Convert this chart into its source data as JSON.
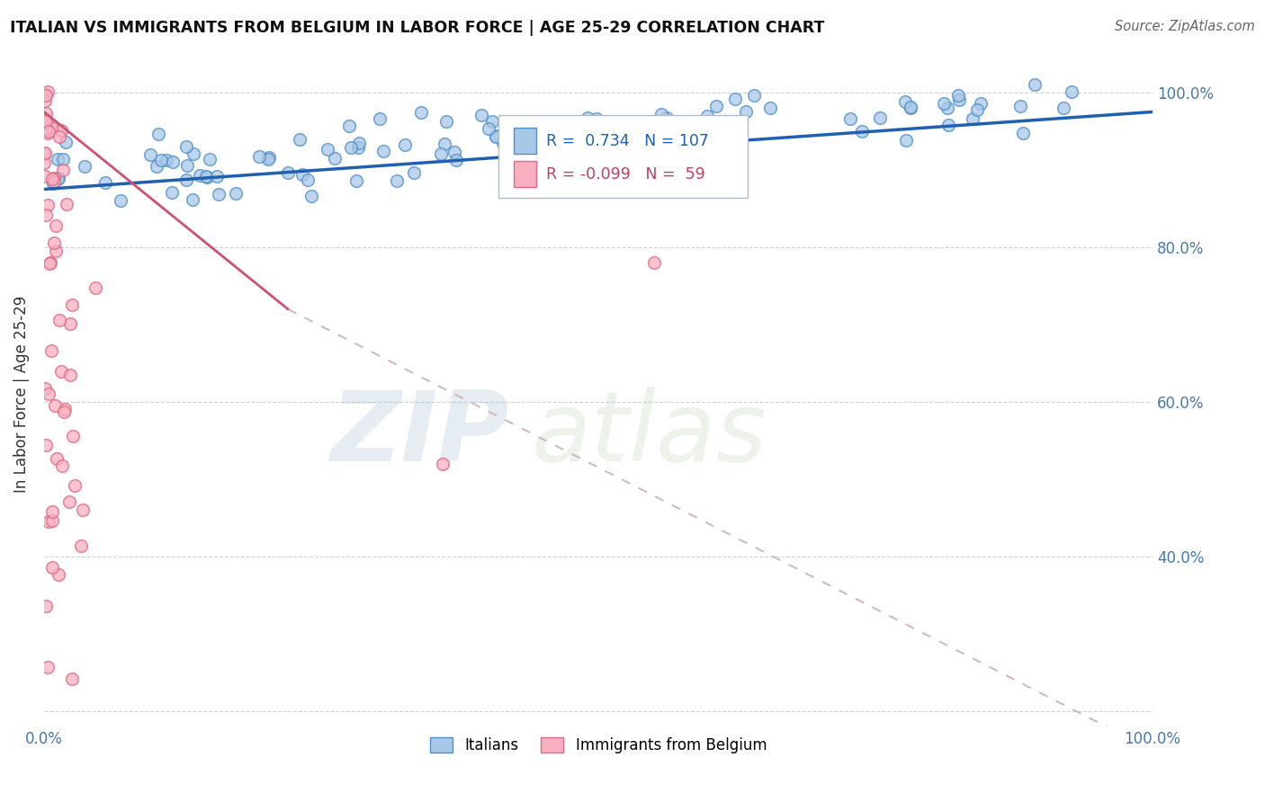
{
  "title": "ITALIAN VS IMMIGRANTS FROM BELGIUM IN LABOR FORCE | AGE 25-29 CORRELATION CHART",
  "source_text": "Source: ZipAtlas.com",
  "ylabel": "In Labor Force | Age 25-29",
  "watermark_zip": "ZIP",
  "watermark_atlas": "atlas",
  "blue_label": "Italians",
  "pink_label": "Immigrants from Belgium",
  "blue_R": 0.734,
  "blue_N": 107,
  "pink_R": -0.099,
  "pink_N": 59,
  "blue_color": "#a8c8e8",
  "blue_edge_color": "#5090c8",
  "pink_color": "#f8b0c0",
  "pink_edge_color": "#e06888",
  "trend_blue_color": "#2060b0",
  "trend_pink_color": "#d05070",
  "trend_dash_color": "#d0b8c8",
  "background_color": "#ffffff",
  "xlim": [
    0.0,
    1.0
  ],
  "ylim": [
    0.18,
    1.04
  ],
  "x_ticks": [
    0.0,
    0.1,
    0.2,
    0.3,
    0.4,
    0.5,
    0.6,
    0.7,
    0.8,
    0.9,
    1.0
  ],
  "y_ticks": [
    0.2,
    0.4,
    0.6,
    0.8,
    1.0
  ],
  "marker_size": 97
}
